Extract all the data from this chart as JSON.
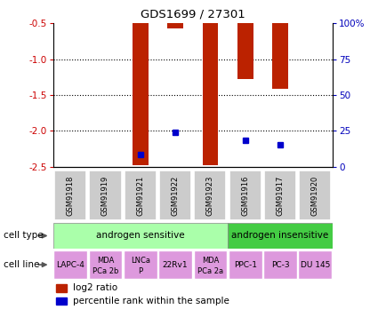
{
  "title": "GDS1699 / 27301",
  "samples": [
    "GSM91918",
    "GSM91919",
    "GSM91921",
    "GSM91922",
    "GSM91923",
    "GSM91916",
    "GSM91917",
    "GSM91920"
  ],
  "log2_ratio": [
    0,
    0,
    -2.48,
    -0.57,
    -2.48,
    -1.28,
    -1.42,
    0
  ],
  "percentile_rank_y": [
    null,
    null,
    -2.33,
    -2.02,
    null,
    -2.14,
    -2.2,
    null
  ],
  "ylim": [
    -2.5,
    -0.5
  ],
  "yticks_left": [
    -2.5,
    -2.0,
    -1.5,
    -1.0,
    -0.5
  ],
  "yticks_right": [
    0,
    25,
    50,
    75,
    100
  ],
  "left_tick_color": "#cc0000",
  "right_tick_color": "#0000bb",
  "bar_color": "#bb2200",
  "percentile_color": "#0000cc",
  "grid_color": "#000000",
  "cell_type_sensitive_color": "#aaffaa",
  "cell_type_insensitive_color": "#44cc44",
  "cell_line_color": "#dd99dd",
  "sample_bg_color": "#cccccc",
  "cell_type_sensitive": "androgen sensitive",
  "cell_type_insensitive": "androgen insensitive",
  "cell_lines_top": [
    "LAPC-4",
    "MDA",
    "LNCa",
    "22Rv1",
    "MDA",
    "PPC-1",
    "PC-3",
    "DU 145"
  ],
  "cell_lines_bot": [
    "",
    "PCa 2b",
    "P",
    "",
    "PCa 2a",
    "",
    "",
    ""
  ],
  "n_sensitive": 5,
  "n_insensitive": 3,
  "legend_log2": "log2 ratio",
  "legend_pct": "percentile rank within the sample"
}
